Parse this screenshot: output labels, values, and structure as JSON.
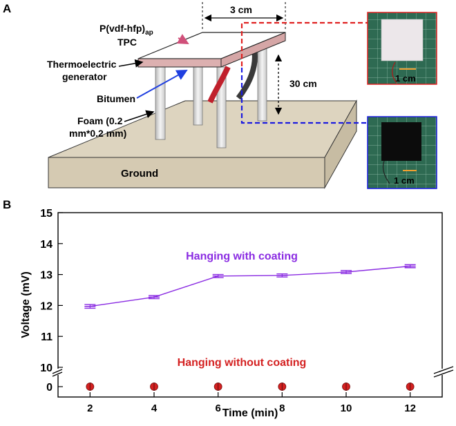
{
  "panel_a": {
    "label": "A",
    "labels": {
      "coating": "P(vdf-hfp)",
      "coating_sub": "ap",
      "coating_line2": "TPC",
      "teg_line1": "Thermoelectric",
      "teg_line2": "generator",
      "bitumen": "Bitumen",
      "foam_line1": "Foam (0.2",
      "foam_line2": "mm*0.2 mm)",
      "ground": "Ground",
      "width_dim": "3 cm",
      "height_dim": "30 cm",
      "scale_top": "1 cm",
      "scale_bottom": "1 cm"
    },
    "colors": {
      "red_dash": "#e02020",
      "blue_dash": "#1a1ae0",
      "arrow_blue": "#1f3fe0",
      "arrow_pink": "#d0507a",
      "teg_fill": "#dcb0b0"
    }
  },
  "panel_b": {
    "label": "B"
  },
  "chart_data": {
    "type": "line",
    "x": [
      2,
      4,
      6,
      8,
      10,
      12
    ],
    "xlabel": "Time (min)",
    "ylabel": "Voltage (mV)",
    "xlim": [
      1,
      13
    ],
    "x_ticks": [
      "2",
      "4",
      "6",
      "8",
      "10",
      "12"
    ],
    "y_ticks_upper": [
      "10",
      "11",
      "12",
      "13",
      "14",
      "15"
    ],
    "y_tick_lower": "0",
    "ylim_upper": [
      10,
      15
    ],
    "axis_break": true,
    "series": [
      {
        "name": "Hanging with coating",
        "color": "#8a2be2",
        "values": [
          11.97,
          12.27,
          12.95,
          12.97,
          13.08,
          13.27
        ],
        "errors": [
          0.06,
          0.05,
          0.05,
          0.05,
          0.05,
          0.05
        ]
      },
      {
        "name": "Hanging without coating",
        "color": "#d42020",
        "values": [
          0,
          0,
          0,
          0,
          0,
          0
        ]
      }
    ]
  }
}
